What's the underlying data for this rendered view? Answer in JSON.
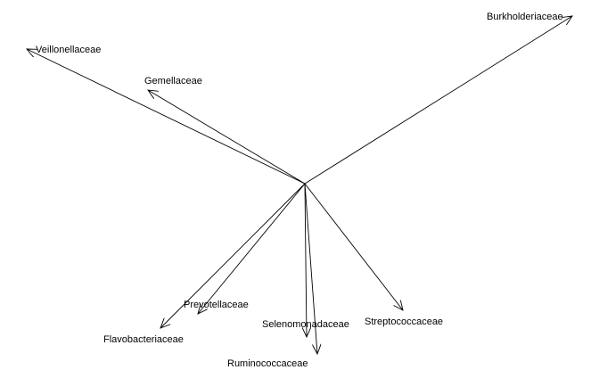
{
  "arrows": [
    {
      "label": "Burkholderiaceae"
    },
    {
      "label": "Veillonellaceae"
    },
    {
      "label": "Gemellaceae"
    },
    {
      "label": "Flavobacteriaceae"
    },
    {
      "label": "Prevotellaceae"
    },
    {
      "label": "Selenomonadaceae"
    },
    {
      "label": "Ruminococcaceae"
    },
    {
      "label": "Streptococcaceae"
    }
  ]
}
